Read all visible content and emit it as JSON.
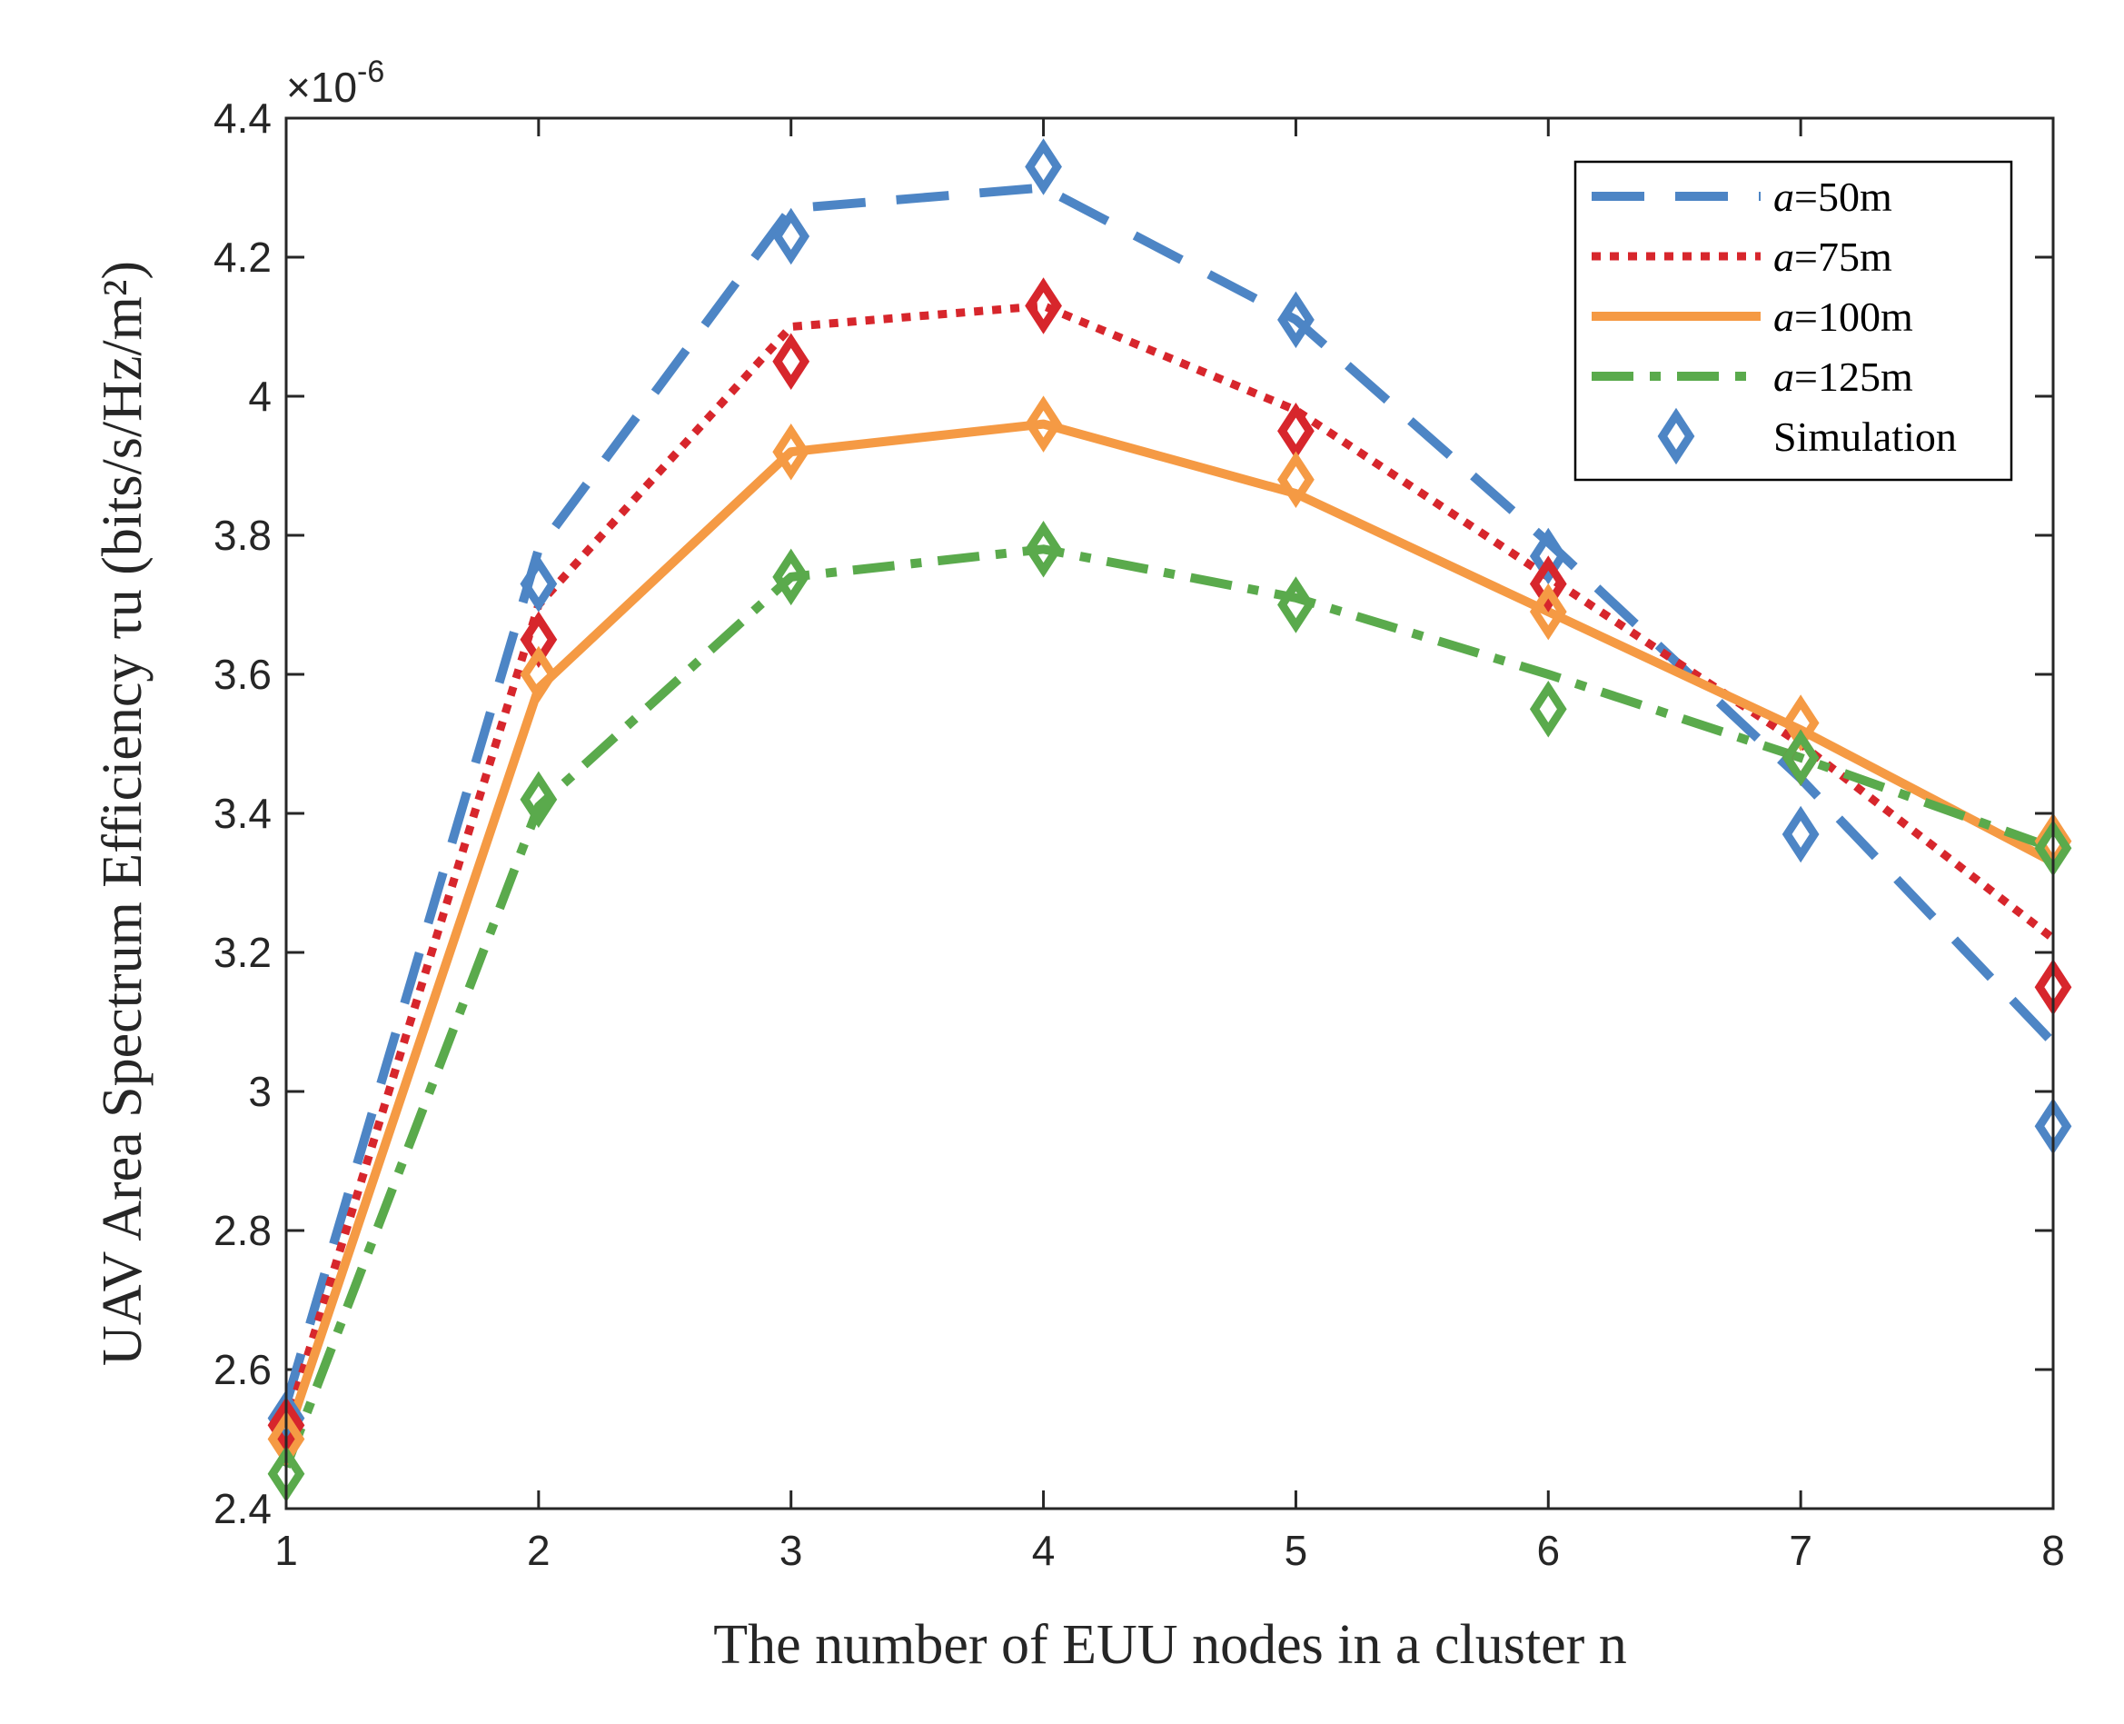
{
  "chart_data": {
    "type": "line",
    "title": "",
    "xlabel": "The number of EUU nodes in a cluster n",
    "ylabel": "UAV Area Spectrum Efficiency τu (bits/s/Hz/m²)",
    "y_scale_label": "×10",
    "y_scale_exponent": "-6",
    "x": [
      1,
      2,
      3,
      4,
      5,
      6,
      7,
      8
    ],
    "xlim": [
      1,
      8
    ],
    "ylim": [
      2.4,
      4.4
    ],
    "xticks": [
      "1",
      "2",
      "3",
      "4",
      "5",
      "6",
      "7",
      "8"
    ],
    "yticks": [
      "2.4",
      "2.6",
      "2.8",
      "3",
      "3.2",
      "3.4",
      "3.6",
      "3.8",
      "4",
      "4.2",
      "4.4"
    ],
    "ytick_values": [
      2.4,
      2.6,
      2.8,
      3.0,
      3.2,
      3.4,
      3.6,
      3.8,
      4.0,
      4.2,
      4.4
    ],
    "legend_position": "top-right",
    "series": [
      {
        "name": "a=50m",
        "prefix": "a",
        "suffix": "=50m",
        "color": "#4d85c5",
        "style": "dashed",
        "values": [
          2.55,
          3.78,
          4.27,
          4.3,
          4.11,
          3.79,
          3.45,
          3.07
        ],
        "simulation": [
          2.53,
          3.73,
          4.23,
          4.33,
          4.11,
          3.77,
          3.37,
          2.95
        ]
      },
      {
        "name": "a=75m",
        "prefix": "a",
        "suffix": "=75m",
        "color": "#d7262c",
        "style": "dotted",
        "values": [
          2.52,
          3.7,
          4.1,
          4.13,
          3.98,
          3.74,
          3.5,
          3.22
        ],
        "simulation": [
          2.52,
          3.65,
          4.05,
          4.13,
          3.95,
          3.73,
          3.48,
          3.15
        ]
      },
      {
        "name": "a=100m",
        "prefix": "a",
        "suffix": "=100m",
        "color": "#f59a44",
        "style": "solid",
        "values": [
          2.5,
          3.58,
          3.92,
          3.96,
          3.86,
          3.69,
          3.52,
          3.33
        ],
        "simulation": [
          2.5,
          3.6,
          3.92,
          3.96,
          3.88,
          3.69,
          3.53,
          3.36
        ]
      },
      {
        "name": "a=125m",
        "prefix": "a",
        "suffix": "=125m",
        "color": "#5aaa4c",
        "style": "dashdot",
        "values": [
          2.46,
          3.41,
          3.74,
          3.78,
          3.71,
          3.6,
          3.48,
          3.35
        ],
        "simulation": [
          2.45,
          3.42,
          3.74,
          3.78,
          3.7,
          3.55,
          3.48,
          3.35
        ]
      }
    ],
    "simulation_legend_label": "Simulation",
    "simulation_legend_color": "#4d85c5"
  }
}
